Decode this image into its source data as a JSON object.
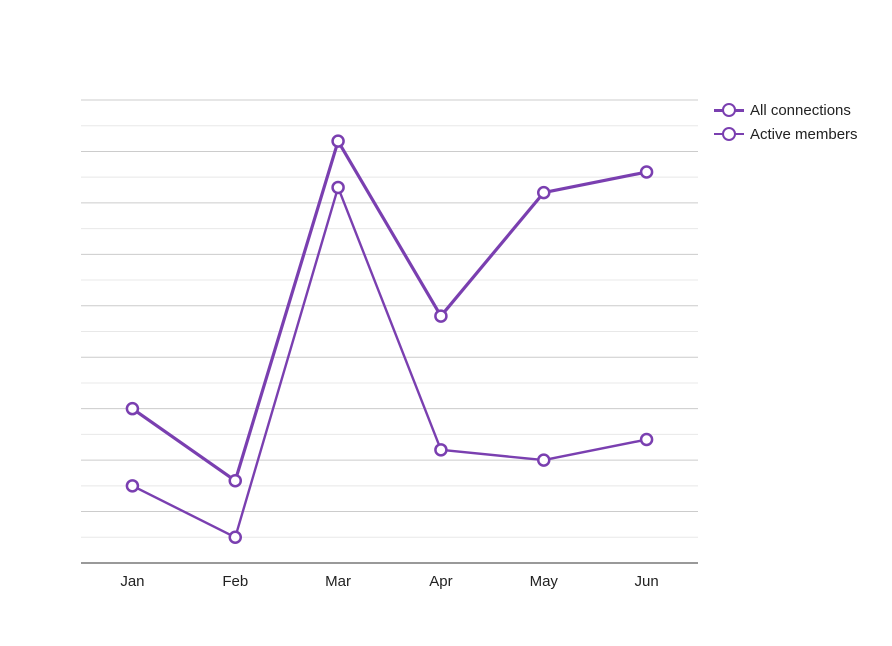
{
  "colors": {
    "series": "#7a3fb0",
    "grid": "#cccccc",
    "grid_minor": "#e8e8e8",
    "axis": "#333333"
  },
  "chart_data": {
    "type": "line",
    "categories": [
      "Jan",
      "Feb",
      "Mar",
      "Apr",
      "May",
      "Jun"
    ],
    "series": [
      {
        "name": "All connections",
        "values": [
          6,
          3.2,
          16.4,
          9.6,
          14.4,
          15.2
        ]
      },
      {
        "name": "Active members",
        "values": [
          3,
          1,
          14.6,
          4.4,
          4,
          4.8
        ]
      }
    ],
    "ylim": [
      0,
      18
    ],
    "grid": true,
    "legend": "top-right",
    "title": "",
    "xlabel": "",
    "ylabel": ""
  }
}
